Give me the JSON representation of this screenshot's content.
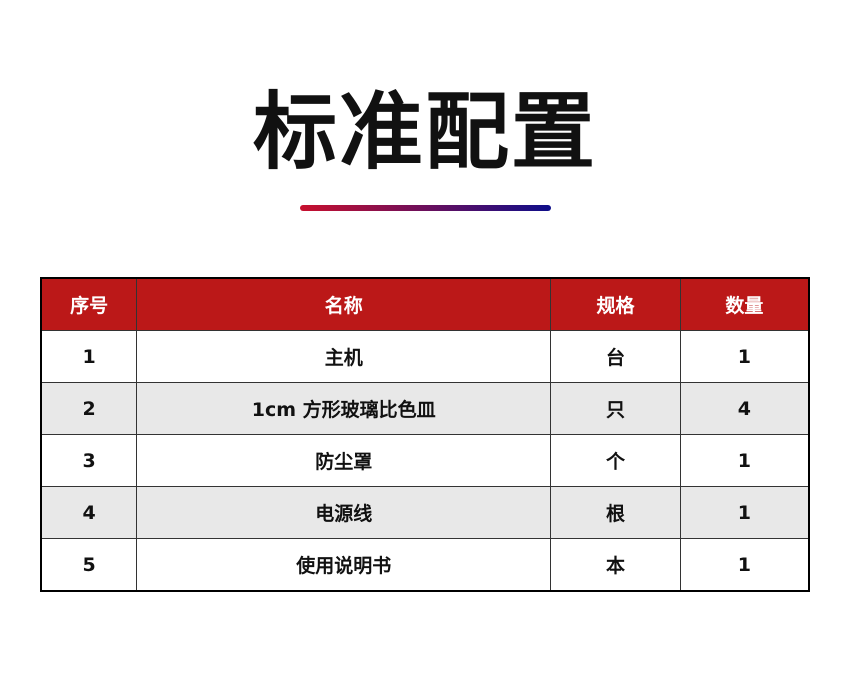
{
  "title": "标准配置",
  "accent_gradient": [
    "#c8102e",
    "#0e0e8a"
  ],
  "header_color": "#bb1818",
  "table": {
    "headers": [
      "序号",
      "名称",
      "规格",
      "数量"
    ],
    "rows": [
      [
        "1",
        "主机",
        "台",
        "1"
      ],
      [
        "2",
        "1cm 方形玻璃比色皿",
        "只",
        "4"
      ],
      [
        "3",
        "防尘罩",
        "个",
        "1"
      ],
      [
        "4",
        "电源线",
        "根",
        "1"
      ],
      [
        "5",
        "使用说明书",
        "本",
        "1"
      ]
    ]
  }
}
